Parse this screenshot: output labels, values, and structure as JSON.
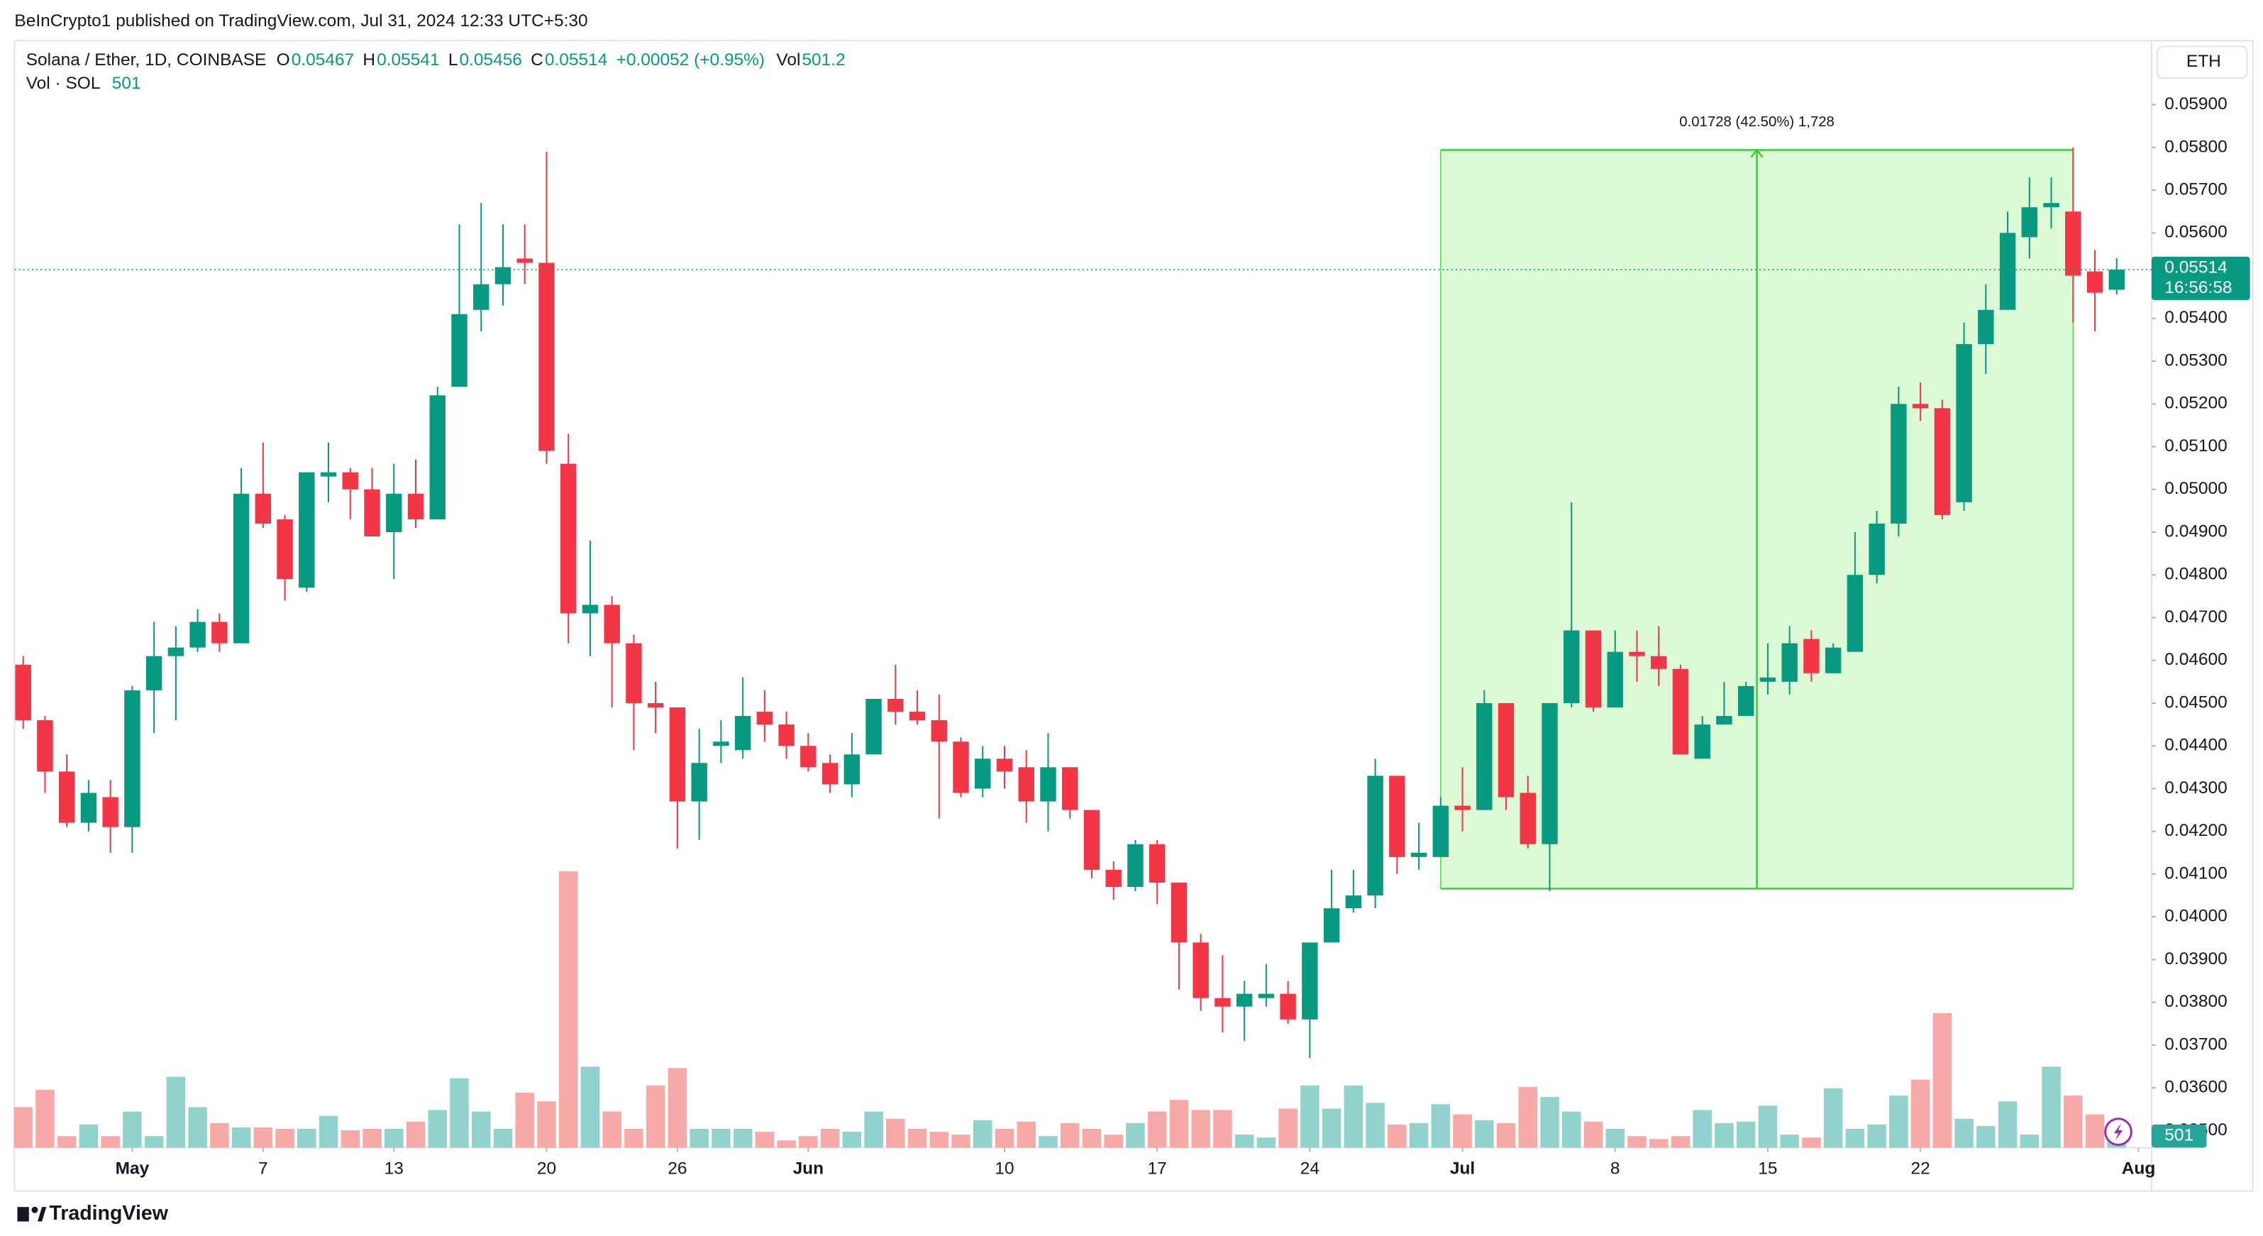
{
  "header": {
    "published": "BeInCrypto1 published on TradingView.com, Jul 31, 2024 12:33 UTC+5:30",
    "brand": "TradingView"
  },
  "chart_data": {
    "type": "candlestick",
    "title": "Solana / Ether, 1D, COINBASE",
    "currency": "ETH",
    "legend": {
      "open": "O",
      "high": "H",
      "low": "L",
      "close": "C",
      "change": "+0.00052 (+0.95%)",
      "vol": "Vol",
      "vol_name": "Vol · SOL",
      "vol_value": "501"
    },
    "countdown": "16:56:58",
    "up_color": "#089981",
    "down_color": "#f23645",
    "volume_up_color": "#92d2cc",
    "volume_down_color": "#f7a9a7",
    "grid": false,
    "open": [
      0.0459,
      0.0446,
      0.0434,
      0.0422,
      0.0428,
      0.0421,
      0.0453,
      0.0461,
      0.0463,
      0.0469,
      0.0464,
      0.0499,
      0.0493,
      0.0477,
      0.0503,
      0.0504,
      0.05,
      0.049,
      0.0499,
      0.0493,
      0.0524,
      0.0542,
      0.0548,
      0.0554,
      0.0553,
      0.0506,
      0.0471,
      0.0473,
      0.0464,
      0.045,
      0.0449,
      0.0427,
      0.044,
      0.0439,
      0.0448,
      0.0445,
      0.044,
      0.0436,
      0.0431,
      0.0438,
      0.0451,
      0.0448,
      0.0446,
      0.0441,
      0.043,
      0.0437,
      0.0435,
      0.0427,
      0.0435,
      0.0425,
      0.0411,
      0.0407,
      0.0417,
      0.0408,
      0.0394,
      0.0381,
      0.0379,
      0.0381,
      0.0382,
      0.0376,
      0.0394,
      0.0402,
      0.0405,
      0.0433,
      0.0414,
      0.0414,
      0.0426,
      0.0425,
      0.045,
      0.0429,
      0.0417,
      0.045,
      0.0467,
      0.0449,
      0.0462,
      0.0461,
      0.0458,
      0.0437,
      0.0445,
      0.0447,
      0.0455,
      0.0455,
      0.0465,
      0.0457,
      0.0462,
      0.048,
      0.0492,
      0.052,
      0.0519,
      0.0497,
      0.0534,
      0.0542,
      0.0559,
      0.0566,
      0.0565,
      0.0551,
      0.05467
    ],
    "high": [
      0.0461,
      0.0447,
      0.0438,
      0.0432,
      0.0432,
      0.0454,
      0.0469,
      0.0468,
      0.0472,
      0.0471,
      0.0505,
      0.0511,
      0.0494,
      0.0504,
      0.0511,
      0.0505,
      0.0505,
      0.0506,
      0.0507,
      0.0524,
      0.0562,
      0.0567,
      0.0562,
      0.0562,
      0.0579,
      0.0513,
      0.0488,
      0.0475,
      0.0466,
      0.0455,
      0.0449,
      0.0444,
      0.0446,
      0.0456,
      0.0453,
      0.0448,
      0.0443,
      0.0438,
      0.0443,
      0.0451,
      0.0459,
      0.0453,
      0.0452,
      0.0442,
      0.044,
      0.044,
      0.0439,
      0.0443,
      0.0435,
      0.0425,
      0.0413,
      0.0418,
      0.0418,
      0.0408,
      0.0396,
      0.0391,
      0.0385,
      0.0389,
      0.0385,
      0.0394,
      0.0411,
      0.0411,
      0.0437,
      0.0433,
      0.0422,
      0.0428,
      0.0435,
      0.0453,
      0.045,
      0.0433,
      0.045,
      0.0497,
      0.0467,
      0.0467,
      0.0467,
      0.0468,
      0.0459,
      0.0447,
      0.0455,
      0.0455,
      0.0464,
      0.0468,
      0.0467,
      0.0464,
      0.049,
      0.0495,
      0.0524,
      0.0525,
      0.0521,
      0.0539,
      0.0548,
      0.0565,
      0.0573,
      0.0573,
      0.058,
      0.0556,
      0.05541
    ],
    "low": [
      0.0444,
      0.0429,
      0.0421,
      0.042,
      0.0415,
      0.0415,
      0.0443,
      0.0446,
      0.0462,
      0.0462,
      0.0464,
      0.0491,
      0.0474,
      0.0476,
      0.0497,
      0.0493,
      0.0489,
      0.0479,
      0.0491,
      0.0493,
      0.0524,
      0.0537,
      0.0543,
      0.0548,
      0.0506,
      0.0464,
      0.0461,
      0.0449,
      0.0439,
      0.0443,
      0.0416,
      0.0418,
      0.0436,
      0.0437,
      0.0441,
      0.0437,
      0.0434,
      0.0429,
      0.0428,
      0.0438,
      0.0445,
      0.0445,
      0.0423,
      0.0428,
      0.0428,
      0.043,
      0.0422,
      0.042,
      0.0423,
      0.0409,
      0.0404,
      0.0406,
      0.0403,
      0.0383,
      0.0378,
      0.0373,
      0.0371,
      0.0379,
      0.0375,
      0.0367,
      0.0394,
      0.0401,
      0.0402,
      0.041,
      0.0411,
      0.0414,
      0.042,
      0.0425,
      0.0425,
      0.0416,
      0.0406,
      0.0449,
      0.0448,
      0.0449,
      0.0455,
      0.0454,
      0.0438,
      0.0437,
      0.0445,
      0.0447,
      0.0452,
      0.0452,
      0.0455,
      0.0457,
      0.0462,
      0.0478,
      0.0489,
      0.0516,
      0.0493,
      0.0495,
      0.0527,
      0.0542,
      0.0554,
      0.0561,
      0.0539,
      0.0537,
      0.05456
    ],
    "close": [
      0.0446,
      0.0434,
      0.0422,
      0.0429,
      0.0421,
      0.0453,
      0.0461,
      0.0463,
      0.0469,
      0.0464,
      0.0499,
      0.0492,
      0.0479,
      0.0504,
      0.0504,
      0.05,
      0.0489,
      0.0499,
      0.0493,
      0.0522,
      0.0541,
      0.0548,
      0.0552,
      0.0553,
      0.0509,
      0.0471,
      0.0473,
      0.0464,
      0.045,
      0.0449,
      0.0427,
      0.0436,
      0.0441,
      0.0447,
      0.0445,
      0.044,
      0.0435,
      0.0431,
      0.0438,
      0.0451,
      0.0448,
      0.0446,
      0.0441,
      0.0429,
      0.0437,
      0.0434,
      0.0427,
      0.0435,
      0.0425,
      0.0411,
      0.0407,
      0.0417,
      0.0408,
      0.0394,
      0.0381,
      0.0379,
      0.0382,
      0.0382,
      0.0376,
      0.0394,
      0.0402,
      0.0405,
      0.0433,
      0.0414,
      0.0415,
      0.0426,
      0.0425,
      0.045,
      0.0428,
      0.0417,
      0.045,
      0.0467,
      0.0449,
      0.0462,
      0.0461,
      0.0458,
      0.0438,
      0.0445,
      0.0447,
      0.0454,
      0.0456,
      0.0464,
      0.0457,
      0.0463,
      0.048,
      0.0492,
      0.052,
      0.0519,
      0.0494,
      0.0534,
      0.0542,
      0.056,
      0.0566,
      0.0567,
      0.055,
      0.0546,
      0.05514
    ],
    "volume": [
      1008,
      1440,
      288,
      576,
      288,
      900,
      288,
      1764,
      1008,
      612,
      504,
      504,
      468,
      468,
      792,
      432,
      468,
      468,
      648,
      936,
      1728,
      900,
      468,
      1368,
      1152,
      6876,
      2016,
      900,
      468,
      1548,
      1980,
      468,
      468,
      468,
      396,
      180,
      288,
      468,
      396,
      900,
      720,
      468,
      396,
      324,
      684,
      468,
      648,
      288,
      612,
      468,
      324,
      612,
      900,
      1188,
      936,
      936,
      324,
      252,
      972,
      1548,
      972,
      1548,
      1116,
      576,
      612,
      1080,
      828,
      684,
      612,
      1512,
      1260,
      900,
      648,
      468,
      288,
      216,
      288,
      936,
      612,
      648,
      1044,
      324,
      252,
      1476,
      468,
      576,
      1296,
      1692,
      3348,
      720,
      540,
      1152,
      324,
      2016,
      1296,
      828,
      501.2
    ],
    "xticks": [
      {
        "value": 5,
        "label": "May"
      },
      {
        "value": 11,
        "label": "7"
      },
      {
        "value": 17,
        "label": "13"
      },
      {
        "value": 24,
        "label": "20"
      },
      {
        "value": 30,
        "label": "26"
      },
      {
        "value": 36,
        "label": "Jun"
      },
      {
        "value": 45,
        "label": "10"
      },
      {
        "value": 52,
        "label": "17"
      },
      {
        "value": 59,
        "label": "24"
      },
      {
        "value": 66,
        "label": "Jul"
      },
      {
        "value": 73,
        "label": "8"
      },
      {
        "value": 80,
        "label": "15"
      },
      {
        "value": 87,
        "label": "22"
      },
      {
        "value": 97,
        "label": "Aug"
      }
    ],
    "ylim": [
      0.0346,
      0.0605
    ],
    "yticks": [
      {
        "value": 0.059,
        "label": "0.05900"
      },
      {
        "value": 0.058,
        "label": "0.05800"
      },
      {
        "value": 0.057,
        "label": "0.05700"
      },
      {
        "value": 0.056,
        "label": "0.05600"
      },
      {
        "value": 0.055,
        "label": "0.05500"
      },
      {
        "value": 0.054,
        "label": "0.05400"
      },
      {
        "value": 0.053,
        "label": "0.05300"
      },
      {
        "value": 0.052,
        "label": "0.05200"
      },
      {
        "value": 0.051,
        "label": "0.05100"
      },
      {
        "value": 0.05,
        "label": "0.05000"
      },
      {
        "value": 0.049,
        "label": "0.04900"
      },
      {
        "value": 0.048,
        "label": "0.04800"
      },
      {
        "value": 0.047,
        "label": "0.04700"
      },
      {
        "value": 0.046,
        "label": "0.04600"
      },
      {
        "value": 0.045,
        "label": "0.04500"
      },
      {
        "value": 0.044,
        "label": "0.04400"
      },
      {
        "value": 0.043,
        "label": "0.04300"
      },
      {
        "value": 0.042,
        "label": "0.04200"
      },
      {
        "value": 0.041,
        "label": "0.04100"
      },
      {
        "value": 0.04,
        "label": "0.04000"
      },
      {
        "value": 0.039,
        "label": "0.03900"
      },
      {
        "value": 0.038,
        "label": "0.03800"
      },
      {
        "value": 0.037,
        "label": "0.03700"
      },
      {
        "value": 0.036,
        "label": "0.03600"
      },
      {
        "value": 0.035,
        "label": "0.03500"
      }
    ],
    "measure": {
      "start": 65,
      "end": 94,
      "from": 0.04066,
      "to": 0.05794,
      "label": "0.01728 (42.50%) 1,728",
      "color": "#33cc33",
      "fill": "#dcf9d6"
    }
  }
}
